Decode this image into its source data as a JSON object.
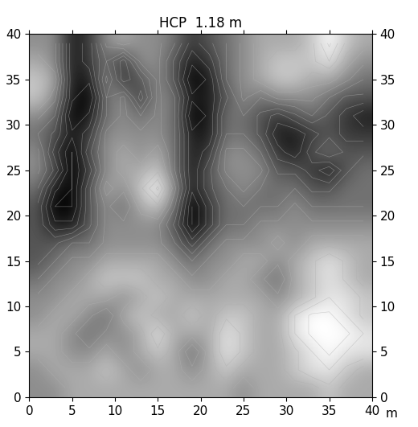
{
  "chart_data": {
    "type": "heatmap",
    "title": "HCP  1.18 m",
    "xlabel": "m",
    "xlim": [
      0,
      40
    ],
    "ylim": [
      0,
      40
    ],
    "xticks": [
      0,
      5,
      10,
      15,
      20,
      25,
      30,
      35,
      40
    ],
    "yticks": [
      0,
      5,
      10,
      15,
      20,
      25,
      30,
      35,
      40
    ],
    "color": "gray",
    "x": [
      1,
      3,
      5,
      7,
      9,
      11,
      13,
      15,
      17,
      19,
      21,
      23,
      25,
      27,
      29,
      31,
      33,
      35,
      37,
      39
    ],
    "y": [
      1,
      3,
      5,
      7,
      9,
      11,
      13,
      15,
      17,
      19,
      21,
      23,
      25,
      27,
      29,
      31,
      33,
      35,
      37,
      39
    ],
    "cells": [
      [
        5,
        5,
        6,
        6,
        6,
        6,
        6,
        6,
        6,
        6,
        6,
        6,
        5,
        6,
        6,
        6,
        6,
        7,
        6,
        6
      ],
      [
        5,
        6,
        6,
        6,
        7,
        6,
        5,
        6,
        6,
        5,
        6,
        7,
        6,
        6,
        6,
        7,
        8,
        8,
        7,
        6
      ],
      [
        6,
        6,
        5,
        5,
        6,
        5,
        6,
        7,
        6,
        4,
        6,
        8,
        7,
        6,
        6,
        7,
        8,
        9,
        8,
        8
      ],
      [
        6,
        6,
        5,
        4,
        5,
        5,
        6,
        8,
        6,
        6,
        6,
        8,
        7,
        6,
        6,
        8,
        9,
        9,
        9,
        8
      ],
      [
        5,
        6,
        6,
        5,
        4,
        6,
        7,
        6,
        6,
        7,
        6,
        7,
        7,
        6,
        6,
        8,
        9,
        9,
        8,
        7
      ],
      [
        5,
        5,
        6,
        6,
        6,
        5,
        6,
        7,
        6,
        6,
        6,
        6,
        6,
        6,
        5,
        6,
        7,
        8,
        8,
        7
      ],
      [
        4,
        5,
        5,
        6,
        7,
        7,
        7,
        6,
        6,
        5,
        5,
        6,
        6,
        5,
        4,
        6,
        7,
        8,
        7,
        6
      ],
      [
        3,
        4,
        5,
        5,
        6,
        6,
        6,
        6,
        5,
        4,
        5,
        5,
        6,
        6,
        5,
        6,
        7,
        8,
        7,
        6
      ],
      [
        3,
        3,
        4,
        4,
        5,
        5,
        5,
        5,
        4,
        2,
        4,
        5,
        5,
        5,
        6,
        5,
        6,
        6,
        6,
        6
      ],
      [
        3,
        1,
        1,
        3,
        5,
        5,
        5,
        5,
        3,
        0,
        2,
        4,
        4,
        5,
        5,
        5,
        5,
        5,
        5,
        5
      ],
      [
        3,
        0,
        0,
        3,
        5,
        4,
        6,
        7,
        4,
        0,
        2,
        4,
        4,
        4,
        4,
        5,
        4,
        4,
        4,
        4
      ],
      [
        4,
        1,
        0,
        3,
        6,
        5,
        7,
        9,
        5,
        1,
        3,
        4,
        5,
        4,
        4,
        4,
        3,
        3,
        4,
        4
      ],
      [
        5,
        3,
        0,
        2,
        5,
        6,
        6,
        7,
        4,
        1,
        3,
        5,
        5,
        5,
        3,
        3,
        2,
        1,
        3,
        4
      ],
      [
        5,
        2,
        0,
        3,
        5,
        6,
        5,
        6,
        4,
        1,
        2,
        5,
        5,
        4,
        2,
        1,
        3,
        4,
        3,
        3
      ],
      [
        4,
        3,
        1,
        2,
        5,
        5,
        5,
        5,
        4,
        1,
        1,
        4,
        4,
        3,
        1,
        1,
        2,
        3,
        2,
        2
      ],
      [
        5,
        4,
        0,
        1,
        4,
        5,
        4,
        5,
        4,
        0,
        1,
        4,
        4,
        3,
        2,
        3,
        4,
        3,
        2,
        1
      ],
      [
        7,
        5,
        1,
        0,
        4,
        5,
        2,
        5,
        4,
        1,
        1,
        3,
        5,
        4,
        5,
        5,
        5,
        4,
        3,
        3
      ],
      [
        7,
        6,
        1,
        1,
        5,
        2,
        3,
        5,
        3,
        0,
        1,
        4,
        5,
        6,
        7,
        7,
        6,
        6,
        5,
        4
      ],
      [
        6,
        5,
        1,
        2,
        4,
        2,
        5,
        5,
        3,
        1,
        2,
        4,
        5,
        6,
        7,
        7,
        7,
        8,
        6,
        5
      ],
      [
        5,
        5,
        1,
        2,
        5,
        6,
        5,
        5,
        4,
        2,
        3,
        4,
        5,
        6,
        6,
        6,
        7,
        9,
        7,
        6
      ]
    ]
  }
}
